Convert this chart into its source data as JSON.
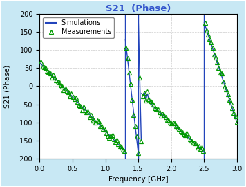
{
  "title": "S21  (Phase)",
  "title_color": "#3355CC",
  "xlabel": "Frequency [GHz]",
  "ylabel": "S21 (Phase)",
  "xlim": [
    0,
    3
  ],
  "ylim": [
    -200,
    200
  ],
  "xticks": [
    0,
    0.5,
    1,
    1.5,
    2,
    2.5,
    3
  ],
  "yticks": [
    -200,
    -150,
    -100,
    -50,
    0,
    50,
    100,
    150,
    200
  ],
  "sim_color": "#2244BB",
  "meas_color": "#009900",
  "background": "#FFFFFF",
  "outer_background": "#C8E8F4",
  "grid_color": "#CCCCCC",
  "grid_style": "--",
  "legend_sim": "Simulations",
  "legend_meas": "Measurements"
}
